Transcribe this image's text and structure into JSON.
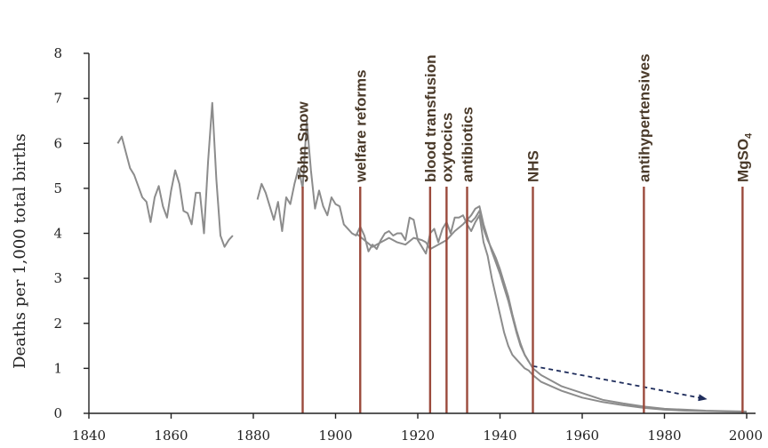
{
  "chart_data": {
    "type": "line",
    "title": "",
    "xlabel": "",
    "ylabel": "Deaths per 1,000 total births",
    "xlim": [
      1840,
      2000
    ],
    "ylim": [
      0,
      8
    ],
    "x_ticks": [
      1840,
      1860,
      1880,
      1900,
      1920,
      1940,
      1960,
      1980,
      2000
    ],
    "y_ticks": [
      0,
      1,
      2,
      3,
      4,
      5,
      6,
      7,
      8
    ],
    "x_tick_labels": [
      "1840",
      "1860",
      "1880",
      "1900",
      "1920",
      "1940",
      "1960",
      "1980",
      "2000"
    ],
    "y_tick_labels": [
      "0",
      "1",
      "2",
      "3",
      "4",
      "5",
      "6",
      "7",
      "8"
    ],
    "grid": false,
    "colors": {
      "series": "#8c8c8c",
      "event_line": "#9b4a3c",
      "event_text": "#4a3a2a",
      "trend_arrow": "#1f2d5c",
      "axis": "#222222"
    },
    "series": [
      {
        "x": [
          1847,
          1848,
          1849,
          1850,
          1851,
          1852,
          1853,
          1854,
          1855,
          1856,
          1857,
          1858,
          1859,
          1860,
          1861,
          1862,
          1863,
          1864,
          1865,
          1866,
          1867,
          1868,
          1869,
          1870,
          1871,
          1872,
          1873,
          1874,
          1875,
          1876,
          1877,
          1878,
          1879,
          1880
        ],
        "y": [
          6.0,
          6.15,
          5.8,
          5.45,
          5.3,
          5.05,
          4.8,
          4.7,
          4.25,
          4.8,
          5.05,
          4.6,
          4.35,
          4.95,
          5.4,
          5.1,
          4.5,
          4.45,
          4.2,
          4.9,
          4.9,
          4.0,
          5.6,
          6.9,
          5.2,
          3.95,
          3.7,
          3.85,
          3.95,
          null,
          null,
          null,
          null,
          null
        ]
      },
      {
        "x": [
          1881,
          1882,
          1883,
          1884,
          1885,
          1886,
          1887,
          1888,
          1889,
          1890,
          1891,
          1892,
          1893,
          1894,
          1895,
          1896,
          1897,
          1898,
          1899,
          1900,
          1901,
          1902,
          1903,
          1904,
          1905,
          1906,
          1907,
          1908,
          1909,
          1910,
          1911,
          1912,
          1913,
          1914,
          1915,
          1916,
          1917,
          1918,
          1919,
          1920,
          1921,
          1922,
          1923,
          1924,
          1925,
          1926,
          1927,
          1928,
          1929,
          1930,
          1931,
          1932,
          1933,
          1934,
          1935,
          1936,
          1937,
          1938,
          1939,
          1940,
          1941,
          1942,
          1943,
          1944,
          1945,
          1946,
          1947,
          1948,
          1950,
          1955,
          1960,
          1965,
          1970,
          1975,
          1980,
          1985,
          1990,
          1995,
          2000
        ],
        "y": [
          4.75,
          5.1,
          4.9,
          4.6,
          4.3,
          4.7,
          4.05,
          4.8,
          4.65,
          5.1,
          5.45,
          5.0,
          6.5,
          5.4,
          4.55,
          4.95,
          4.6,
          4.4,
          4.8,
          4.65,
          4.6,
          4.2,
          4.1,
          4.0,
          3.95,
          4.15,
          3.95,
          3.6,
          3.75,
          3.65,
          3.85,
          4.0,
          4.05,
          3.95,
          4.0,
          4.0,
          3.85,
          4.35,
          4.3,
          3.85,
          3.7,
          3.55,
          4.0,
          4.1,
          3.8,
          4.1,
          4.25,
          4.0,
          4.35,
          4.35,
          4.4,
          4.2,
          4.05,
          4.25,
          4.4,
          3.8,
          3.5,
          3.0,
          2.6,
          2.2,
          1.8,
          1.5,
          1.3,
          1.2,
          1.1,
          1.0,
          0.95,
          0.85,
          0.7,
          0.5,
          0.35,
          0.25,
          0.18,
          0.12,
          0.08,
          0.06,
          0.05,
          0.04,
          0.03
        ]
      },
      {
        "x": [
          1905,
          1907,
          1909,
          1911,
          1913,
          1915,
          1917,
          1919,
          1921,
          1922,
          1923,
          1925,
          1927,
          1929,
          1931,
          1932,
          1933,
          1934,
          1935,
          1936,
          1937,
          1938,
          1939,
          1940,
          1941,
          1942,
          1943,
          1944,
          1945,
          1946,
          1947,
          1948,
          1950,
          1955,
          1960,
          1965,
          1970,
          1975,
          1980,
          1985,
          1990,
          1995,
          2000
        ],
        "y": [
          4.0,
          3.85,
          3.7,
          3.8,
          3.9,
          3.8,
          3.75,
          3.9,
          3.85,
          3.8,
          3.65,
          3.75,
          3.85,
          4.05,
          4.2,
          4.3,
          4.25,
          4.35,
          4.5,
          4.1,
          3.85,
          3.65,
          3.45,
          3.2,
          2.9,
          2.6,
          2.2,
          1.85,
          1.55,
          1.3,
          1.15,
          1.0,
          0.85,
          0.6,
          0.45,
          0.3,
          0.22,
          0.15,
          0.1,
          0.08,
          0.06,
          0.05,
          0.04
        ]
      },
      {
        "x": [
          1932,
          1933,
          1934,
          1935,
          1936,
          1937,
          1938,
          1939,
          1940,
          1941,
          1942,
          1943,
          1944,
          1945,
          1946,
          1947
        ],
        "y": [
          4.3,
          4.4,
          4.55,
          4.6,
          4.2,
          3.9,
          3.6,
          3.35,
          3.1,
          2.8,
          2.5,
          2.15,
          1.8,
          1.5,
          1.3,
          1.15
        ]
      }
    ],
    "events": [
      {
        "label": "John Snow",
        "x": 1892
      },
      {
        "label": "welfare reforms",
        "x": 1906
      },
      {
        "label": "blood transfusion",
        "x": 1923
      },
      {
        "label": "oxytocics",
        "x": 1927
      },
      {
        "label": "antibiotics",
        "x": 1932
      },
      {
        "label": "NHS",
        "x": 1948
      },
      {
        "label": "antihypertensives",
        "x": 1975
      },
      {
        "label": "MgSO",
        "label_subscript": "4",
        "x": 1999
      }
    ],
    "trend_arrow": {
      "from": [
        1948,
        1.05
      ],
      "to": [
        1990,
        0.32
      ],
      "style": "dashed"
    }
  }
}
